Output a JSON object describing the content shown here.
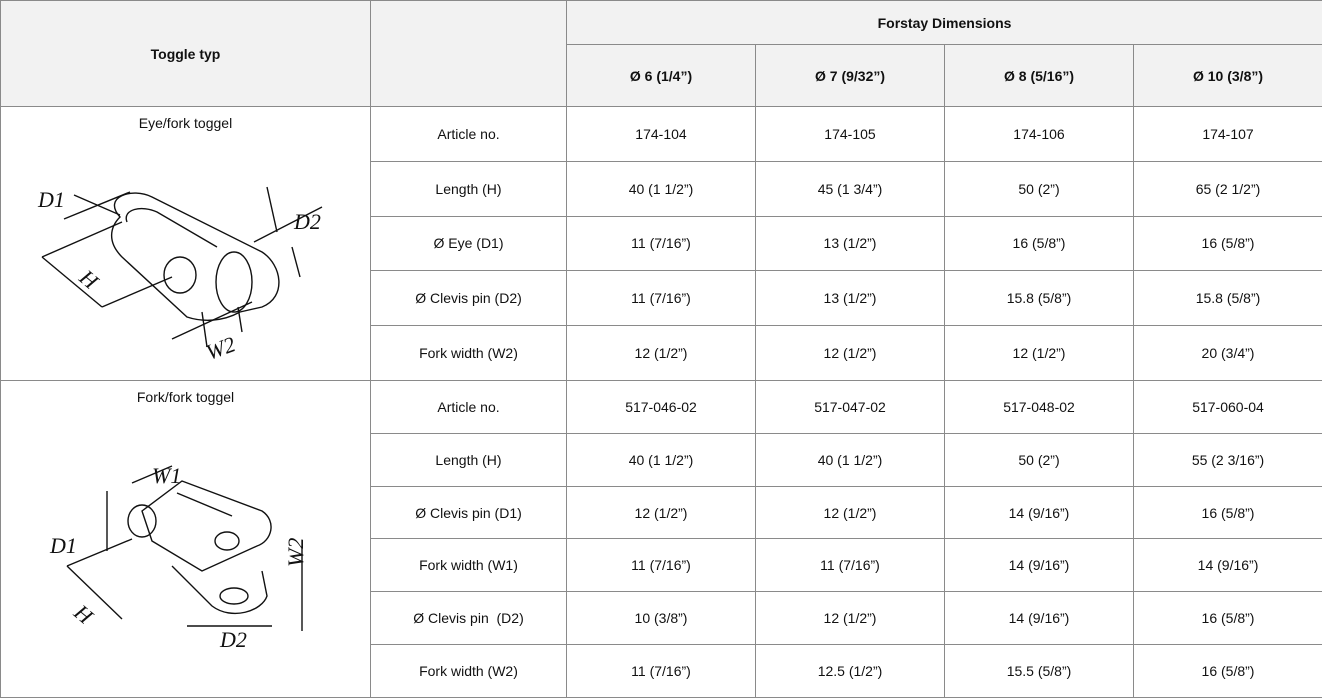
{
  "header": {
    "first": "Toggle typ",
    "group": "Forstay Dimensions",
    "sizes": [
      "Ø 6 (1/4”)",
      "Ø 7 (9/32”)",
      "Ø 8 (5/16”)",
      "Ø 10 (3/8”)"
    ]
  },
  "sections": [
    {
      "name": "Eye/fork toggel",
      "diagram_labels": [
        "D1",
        "D2",
        "H",
        "W2"
      ],
      "rows": [
        {
          "label": "Article no.",
          "values": [
            "174-104",
            "174-105",
            "174-106",
            "174-107"
          ]
        },
        {
          "label": "Length (H)",
          "values": [
            "40 (1 1/2”)",
            "45 (1 3/4”)",
            "50 (2”)",
            "65 (2 1/2”)"
          ]
        },
        {
          "label": "Ø Eye (D1)",
          "values": [
            "11 (7/16”)",
            "13 (1/2”)",
            "16 (5/8”)",
            "16 (5/8”)"
          ]
        },
        {
          "label": "Ø Clevis pin (D2)",
          "values": [
            "11 (7/16”)",
            "13 (1/2”)",
            "15.8 (5/8”)",
            "15.8 (5/8”)"
          ]
        },
        {
          "label": "Fork width (W2)",
          "values": [
            "12 (1/2”)",
            "12 (1/2”)",
            "12 (1/2”)",
            "20 (3/4”)"
          ]
        }
      ]
    },
    {
      "name": "Fork/fork toggel",
      "diagram_labels": [
        "W1",
        "D1",
        "W2",
        "H",
        "D2"
      ],
      "rows": [
        {
          "label": "Article no.",
          "values": [
            "517-046-02",
            "517-047-02",
            "517-048-02",
            "517-060-04"
          ]
        },
        {
          "label": "Length (H)",
          "values": [
            "40 (1 1/2”)",
            "40 (1 1/2”)",
            "50 (2”)",
            "55 (2 3/16”)"
          ]
        },
        {
          "label": "Ø Clevis pin (D1)",
          "values": [
            "12 (1/2”)",
            "12 (1/2”)",
            "14 (9/16”)",
            "16 (5/8”)"
          ]
        },
        {
          "label": "Fork width (W1)",
          "values": [
            "11 (7/16”)",
            "11 (7/16”)",
            "14 (9/16”)",
            "14 (9/16”)"
          ]
        },
        {
          "label": "Ø Clevis pin  (D2)",
          "values": [
            "10 (3/8”)",
            "12 (1/2”)",
            "14 (9/16”)",
            "16 (5/8”)"
          ]
        },
        {
          "label": "Fork width (W2)",
          "values": [
            "11 (7/16”)",
            "12.5 (1/2”)",
            "15.5 (5/8”)",
            "16 (5/8”)"
          ]
        }
      ]
    }
  ]
}
